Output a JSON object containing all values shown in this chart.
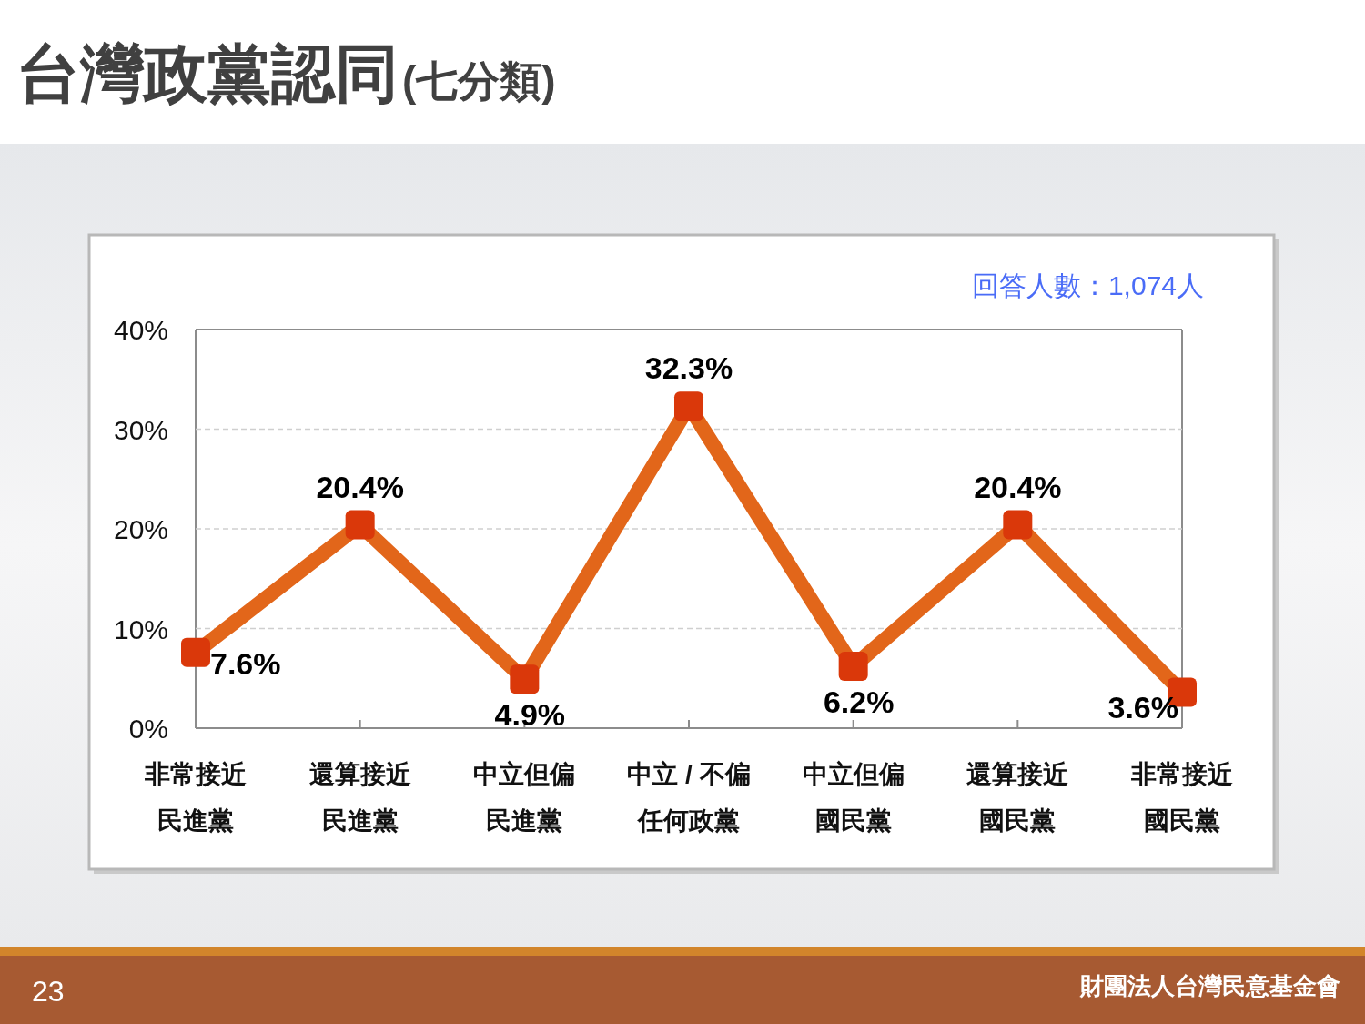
{
  "chart_data": {
    "type": "line",
    "title": "台灣政黨認同",
    "subtitle": "(七分類)",
    "categories": [
      "非常接近民進黨",
      "還算接近民進黨",
      "中立但偏民進黨",
      "中立 / 不偏任何政黨",
      "中立但偏國民黨",
      "還算接近國民黨",
      "非常接近國民黨"
    ],
    "values": [
      7.6,
      20.4,
      4.9,
      32.3,
      6.2,
      20.4,
      3.6
    ],
    "value_labels": [
      "7.6%",
      "20.4%",
      "4.9%",
      "32.3%",
      "6.2%",
      "20.4%",
      "3.6%"
    ],
    "color": "#e2661a",
    "colors": [
      "#da380a",
      "#da380a",
      "#da380a",
      "#da380a",
      "#da380a",
      "#da380a",
      "#da380a"
    ],
    "ylim": [
      0,
      40
    ],
    "yticks": [
      {
        "value": 0,
        "label": "0%"
      },
      {
        "value": 10,
        "label": "10%"
      },
      {
        "value": 20,
        "label": "20%"
      },
      {
        "value": 30,
        "label": "30%"
      },
      {
        "value": 40,
        "label": "40%"
      }
    ],
    "grid": "y",
    "marker": "square",
    "line_style": "solid",
    "annotations": [
      "回答人數：1,074人",
      "23",
      "財團法人台灣民意基金會"
    ]
  }
}
